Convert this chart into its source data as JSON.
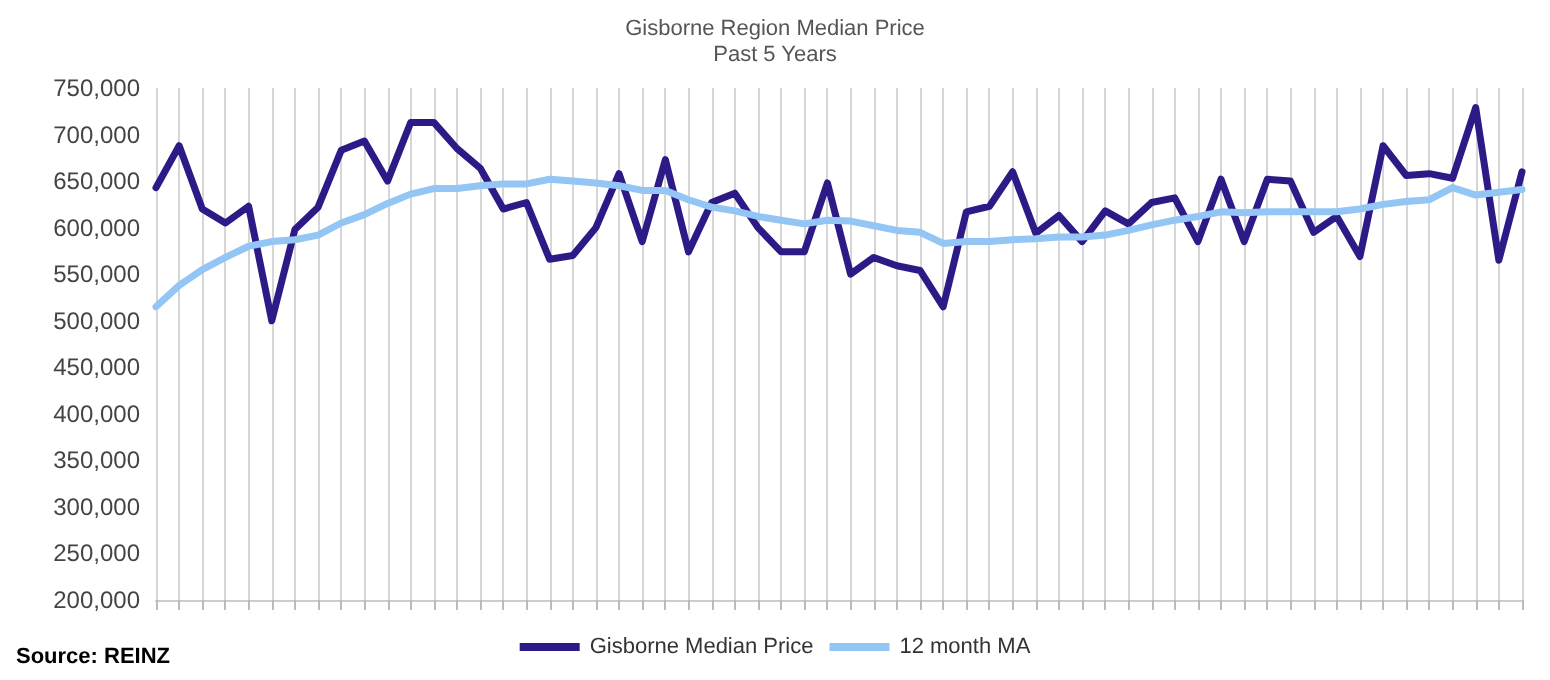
{
  "chart_data": {
    "type": "line",
    "title": "Gisborne Region Median Price",
    "subtitle": "Past 5 Years",
    "categories": [
      null,
      null,
      null,
      null,
      null,
      null,
      null,
      null,
      null,
      null,
      null,
      null,
      null,
      null,
      null,
      null,
      null,
      null,
      null,
      null,
      null,
      null,
      null,
      null,
      null,
      null,
      null,
      null,
      null,
      null,
      null,
      null,
      null,
      null,
      null,
      null,
      null,
      null,
      null,
      null,
      null,
      null,
      null,
      null,
      null,
      null,
      null,
      null,
      null,
      null,
      null,
      null,
      null,
      null,
      null,
      null,
      null,
      null,
      null,
      null
    ],
    "series": [
      {
        "name": "Gisborne Median Price",
        "color": "#2e1a87",
        "values": [
          643000,
          688000,
          620000,
          605000,
          623000,
          500000,
          598000,
          622000,
          683000,
          693000,
          650000,
          713000,
          713000,
          685000,
          664000,
          620000,
          627000,
          566000,
          570000,
          600000,
          658000,
          585000,
          673000,
          574000,
          627000,
          637000,
          600000,
          574000,
          574000,
          648000,
          550000,
          568000,
          559000,
          554000,
          515000,
          617000,
          623000,
          660000,
          594000,
          613000,
          585000,
          618000,
          604000,
          627000,
          632000,
          585000,
          652000,
          585000,
          652000,
          650000,
          595000,
          612000,
          569000,
          688000,
          656000,
          658000,
          653000,
          729000,
          565000,
          660000
        ]
      },
      {
        "name": "12 month MA",
        "color": "#93c5f5",
        "values": [
          515000,
          538000,
          555000,
          568000,
          580000,
          585000,
          587000,
          592000,
          605000,
          614000,
          626000,
          636000,
          642000,
          642000,
          645000,
          647000,
          647000,
          652000,
          650000,
          648000,
          645000,
          640000,
          640000,
          630000,
          622000,
          618000,
          612000,
          608000,
          604000,
          608000,
          607000,
          602000,
          597000,
          595000,
          583000,
          585000,
          585000,
          587000,
          588000,
          590000,
          590000,
          592000,
          597000,
          603000,
          608000,
          612000,
          617000,
          616000,
          617000,
          617000,
          617000,
          617000,
          620000,
          625000,
          628000,
          630000,
          643000,
          635000,
          638000,
          641000
        ]
      }
    ],
    "ylim": [
      200000,
      750000
    ],
    "yticks": [
      {
        "value": 200000,
        "label": "200,000"
      },
      {
        "value": 250000,
        "label": "250,000"
      },
      {
        "value": 300000,
        "label": "300,000"
      },
      {
        "value": 350000,
        "label": "350,000"
      },
      {
        "value": 400000,
        "label": "400,000"
      },
      {
        "value": 450000,
        "label": "450,000"
      },
      {
        "value": 500000,
        "label": "500,000"
      },
      {
        "value": 550000,
        "label": "550,000"
      },
      {
        "value": 600000,
        "label": "600,000"
      },
      {
        "value": 650000,
        "label": "650,000"
      },
      {
        "value": 700000,
        "label": "700,000"
      },
      {
        "value": 750000,
        "label": "750,000"
      }
    ],
    "grid": "x",
    "legend": "bottom",
    "marker": "none",
    "line_style": "solid",
    "annotations": [
      "Source: REINZ"
    ]
  }
}
